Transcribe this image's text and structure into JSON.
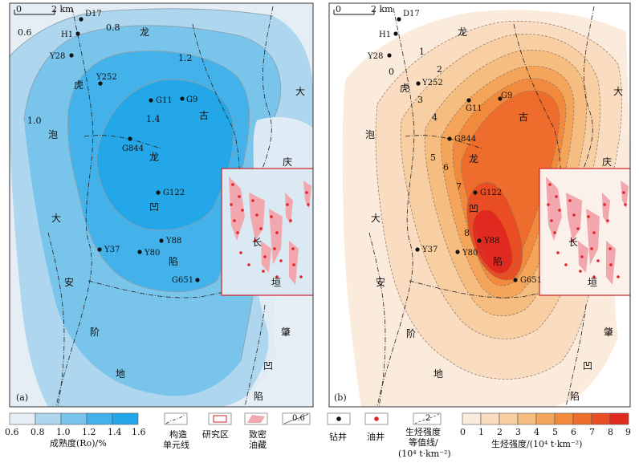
{
  "panels": [
    {
      "id": "a",
      "panel_label": "(a)",
      "scale_label": "2 km",
      "scale_zero": "0",
      "contour_labels": [
        "0.6",
        "0.8",
        "1.0",
        "1.2",
        "1.4"
      ],
      "region_chars": [
        "龙",
        "虎",
        "泡",
        "大",
        "安",
        "阶",
        "地",
        "古",
        "龙",
        "凹",
        "陷",
        "长",
        "垣",
        "大",
        "庆",
        "肇",
        "凹",
        "陷"
      ],
      "wells": [
        "D17",
        "H1",
        "Y28",
        "Y252",
        "G11",
        "G9",
        "G844",
        "G122",
        "Y88",
        "Y80",
        "Y37",
        "G651"
      ]
    },
    {
      "id": "b",
      "panel_label": "(b)",
      "scale_label": "2 km",
      "scale_zero": "0",
      "contour_labels": [
        "0",
        "1",
        "2",
        "3",
        "4",
        "5",
        "6",
        "7",
        "8"
      ],
      "region_chars": [
        "龙",
        "虎",
        "泡",
        "大",
        "安",
        "阶",
        "地",
        "古",
        "龙",
        "凹",
        "陷",
        "长",
        "垣",
        "大",
        "庆",
        "肇",
        "凹",
        "陷"
      ],
      "wells": [
        "D17",
        "H1",
        "Y28",
        "Y252",
        "G11",
        "G9",
        "G844",
        "G122",
        "Y88",
        "Y80",
        "Y37",
        "G651"
      ]
    }
  ],
  "legend": {
    "maturity": {
      "ticks": [
        "0.6",
        "0.8",
        "1.0",
        "1.2",
        "1.4",
        "1.6"
      ],
      "title": "成熟度(Ro)/%",
      "colors": [
        "#e6eef5",
        "#aed6ee",
        "#79c4ea",
        "#43b2ea",
        "#23a7e8"
      ]
    },
    "tectonic_line": "构造\n单元线",
    "study_area": "研究区",
    "tight_oil": "致密\n油藏",
    "contour_sample": "0.6",
    "drill_well": "钻井",
    "oil_well": "油井",
    "hc_isoline": {
      "sample": "2",
      "line1": "生烃强度",
      "line2": "等值线/",
      "line3": "(10⁴ t·km⁻²)"
    },
    "hc_intensity": {
      "ticks": [
        "0",
        "1",
        "2",
        "3",
        "4",
        "5",
        "6",
        "7",
        "8",
        "9"
      ],
      "title": "生烃强度/(10⁴ t·km⁻²)",
      "colors": [
        "#fbebdc",
        "#fadcc1",
        "#f8cea3",
        "#f6bd80",
        "#f4a55a",
        "#f28a3d",
        "#ee6c2c",
        "#e84d23",
        "#e02a1f"
      ]
    }
  }
}
